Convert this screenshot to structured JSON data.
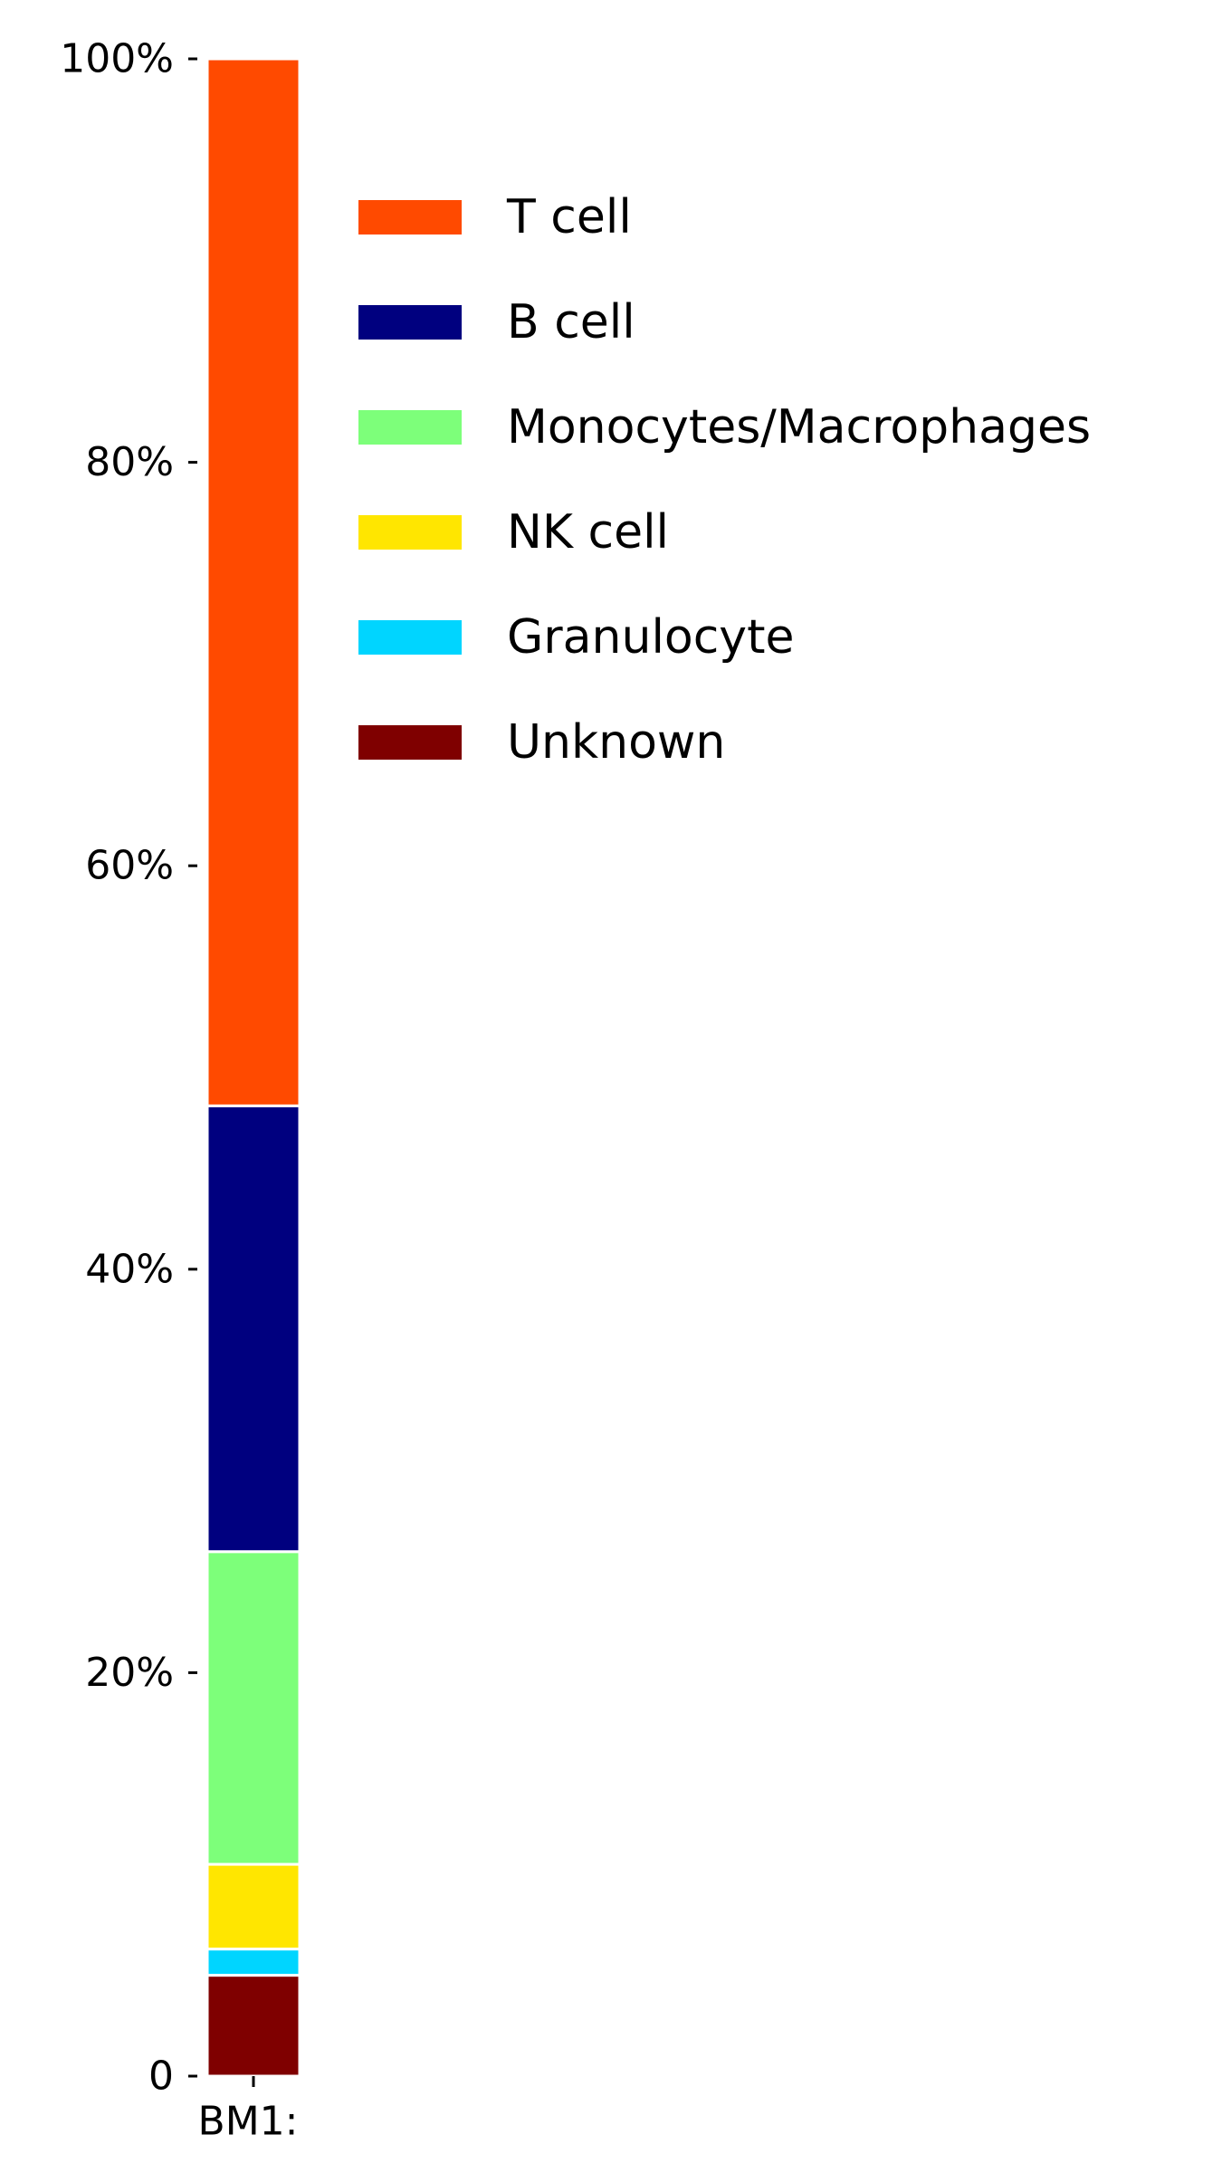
{
  "chart_data": {
    "type": "bar",
    "stacked": true,
    "categories": [
      "BM1:"
    ],
    "series": [
      {
        "name": "Unknown",
        "values": [
          5.0
        ],
        "color": "#7f0000"
      },
      {
        "name": "Granulocyte",
        "values": [
          1.3
        ],
        "color": "#00d5ff"
      },
      {
        "name": "NK cell",
        "values": [
          4.2
        ],
        "color": "#ffe600"
      },
      {
        "name": "Monocytes/Macrophages",
        "values": [
          15.5
        ],
        "color": "#7dff7a"
      },
      {
        "name": "B cell",
        "values": [
          22.1
        ],
        "color": "#00007f"
      },
      {
        "name": "T cell",
        "values": [
          51.9
        ],
        "color": "#ff4a00"
      }
    ],
    "legend_order": [
      "T cell",
      "B cell",
      "Monocytes/Macrophages",
      "NK cell",
      "Granulocyte",
      "Unknown"
    ],
    "y_ticks": [
      {
        "value": 0,
        "label": "0"
      },
      {
        "value": 20,
        "label": "20%"
      },
      {
        "value": 40,
        "label": "40%"
      },
      {
        "value": 60,
        "label": "60%"
      },
      {
        "value": 80,
        "label": "80%"
      },
      {
        "value": 100,
        "label": "100%"
      }
    ],
    "ylim": [
      0,
      100
    ],
    "grid": false,
    "legend_position": "top-right",
    "title": "",
    "xlabel": "",
    "ylabel": ""
  }
}
